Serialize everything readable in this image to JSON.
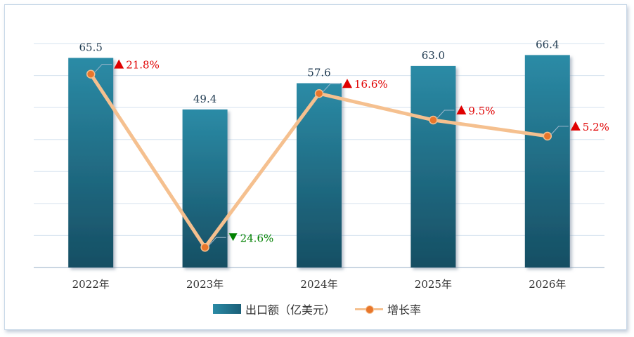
{
  "chart_data": {
    "type": "bar",
    "categories": [
      "2022年",
      "2023年",
      "2024年",
      "2025年",
      "2026年"
    ],
    "series": [
      {
        "name": "出口额（亿美元）",
        "type": "bar",
        "values": [
          65.5,
          49.4,
          57.6,
          63.0,
          66.4
        ],
        "labels": [
          "65.5",
          "49.4",
          "57.6",
          "63.0",
          "66.4"
        ]
      },
      {
        "name": "增长率",
        "type": "line",
        "values": [
          21.8,
          -24.6,
          16.6,
          9.5,
          5.2
        ],
        "labels": [
          "21.8%",
          "24.6%",
          "16.6%",
          "9.5%",
          "5.2%"
        ],
        "directions": [
          "up",
          "down",
          "up",
          "up",
          "up"
        ]
      }
    ],
    "bar_ylim": [
      0,
      70
    ],
    "line_ylim": [
      -30,
      30
    ],
    "grid": true,
    "legend": "bottom",
    "colors": {
      "bar_top": "#2b8ba6",
      "bar_bottom": "#164e63",
      "line": "#f5c08f",
      "marker": "#e8762b",
      "up": "#e00000",
      "down": "#008000",
      "grid": "#d6e3ef",
      "label": "#333333"
    }
  },
  "legend": {
    "bar_label": "出口额（亿美元）",
    "line_label": "增长率"
  }
}
